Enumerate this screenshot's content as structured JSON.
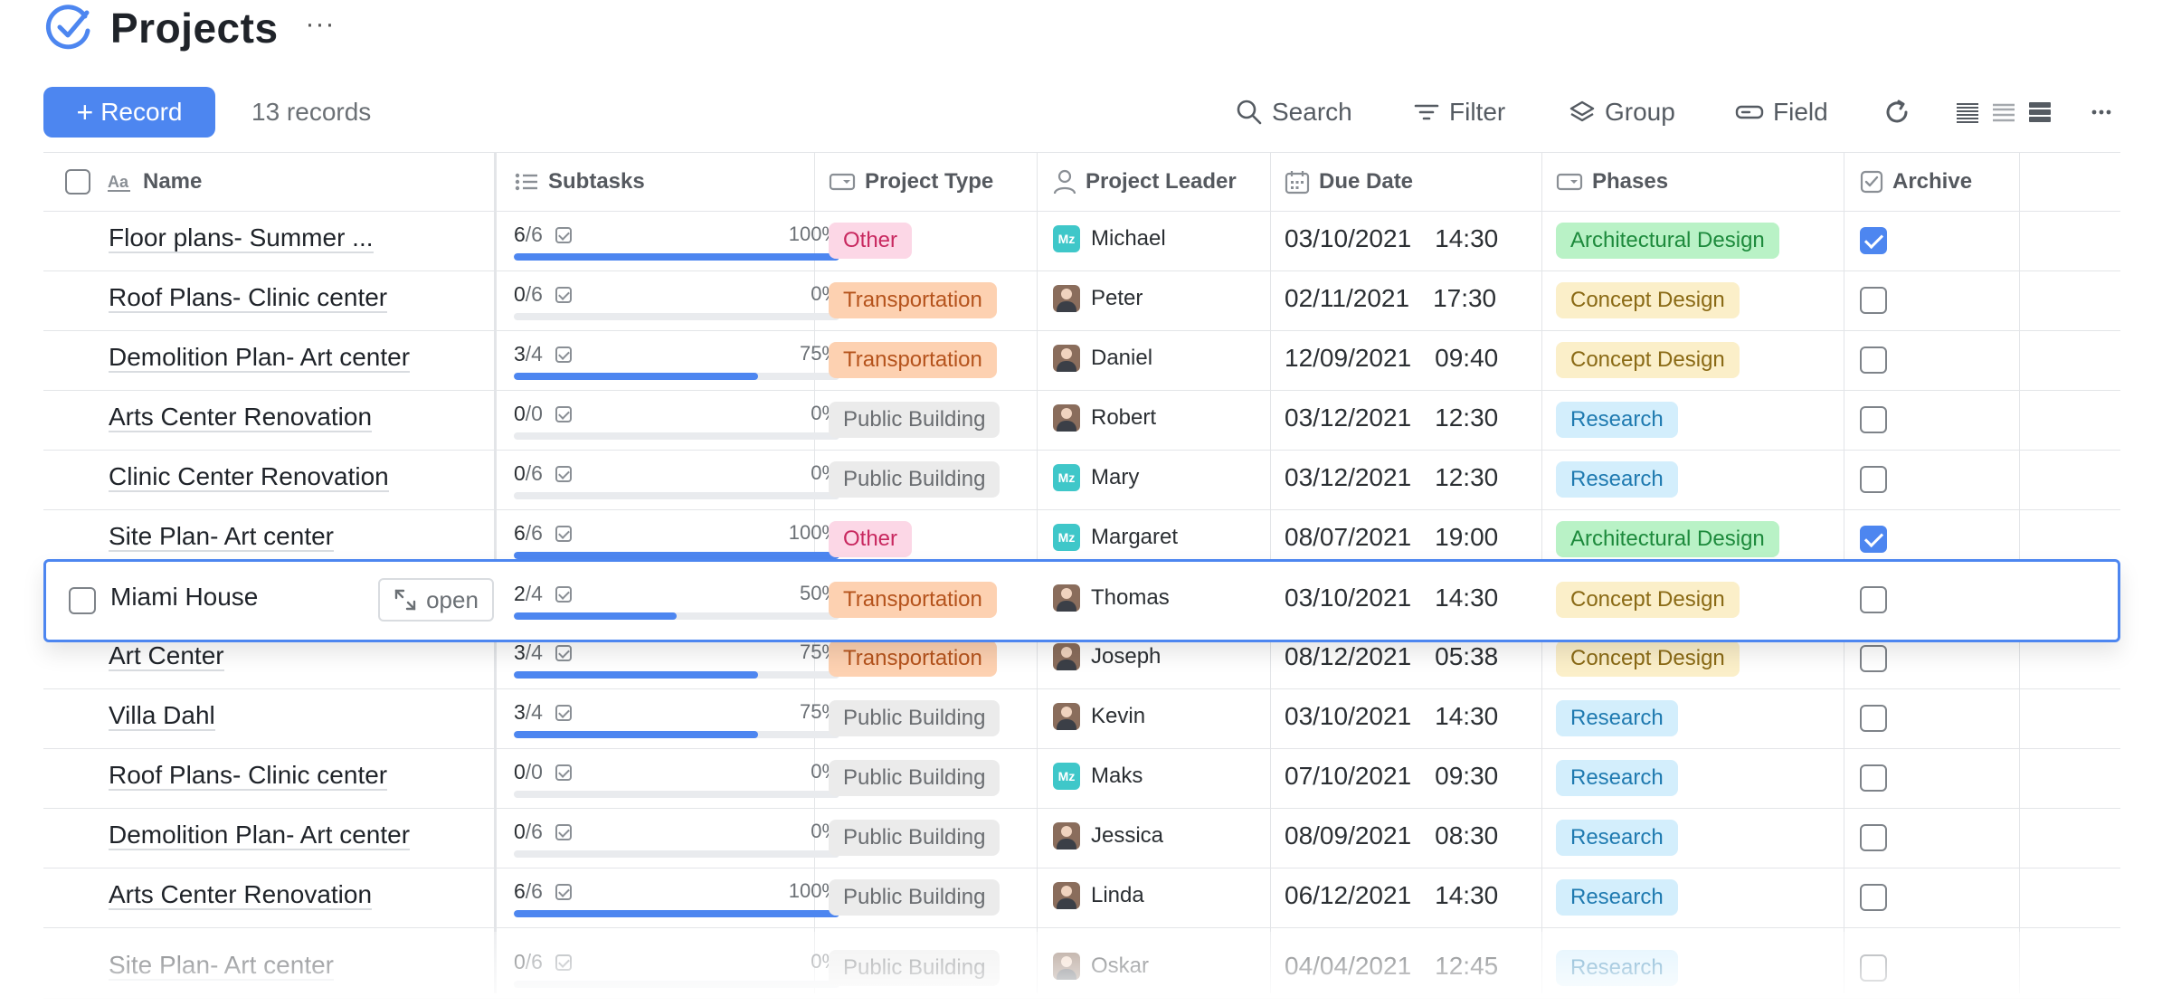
{
  "header": {
    "title": "Projects",
    "more": "···"
  },
  "toolbar": {
    "record_label": "Record",
    "record_count": "13 records",
    "search": "Search",
    "filter": "Filter",
    "group": "Group",
    "field": "Field"
  },
  "columns": {
    "name": "Name",
    "subtasks": "Subtasks",
    "project_type": "Project Type",
    "project_leader": "Project Leader",
    "due_date": "Due Date",
    "phases": "Phases",
    "archive": "Archive"
  },
  "open_label": "open",
  "colors": {
    "accent": "#4d86f0"
  },
  "rows": [
    {
      "name": "Floor  plans- Summer ...",
      "done": "6",
      "total": "/6",
      "percent": "100%",
      "progress": 1.0,
      "type": "Other",
      "leader": "Michael",
      "avatar": "Mz",
      "date": "03/10/2021",
      "time": "14:30",
      "phase": "Architectural Design",
      "archived": true
    },
    {
      "name": "Roof Plans- Clinic center",
      "done": "0",
      "total": "/6",
      "percent": "0%",
      "progress": 0.0,
      "type": "Transportation",
      "leader": "Peter",
      "avatar": "photo",
      "date": "02/11/2021",
      "time": "17:30",
      "phase": "Concept Design",
      "archived": false
    },
    {
      "name": "Demolition Plan- Art center",
      "done": "3",
      "total": "/4",
      "percent": "75%",
      "progress": 0.75,
      "type": "Transportation",
      "leader": "Daniel",
      "avatar": "photo",
      "date": "12/09/2021",
      "time": "09:40",
      "phase": "Concept Design",
      "archived": false
    },
    {
      "name": "Arts Center Renovation",
      "done": "0",
      "total": "/0",
      "percent": "0%",
      "progress": 0.0,
      "type": "Public Building",
      "leader": "Robert",
      "avatar": "photo",
      "date": "03/12/2021",
      "time": "12:30",
      "phase": "Research",
      "archived": false
    },
    {
      "name": "Clinic Center Renovation",
      "done": "0",
      "total": "/6",
      "percent": "0%",
      "progress": 0.0,
      "type": "Public Building",
      "leader": "Mary",
      "avatar": "Mz",
      "date": "03/12/2021",
      "time": "12:30",
      "phase": "Research",
      "archived": false
    },
    {
      "name": "Site Plan- Art center",
      "done": "6",
      "total": "/6",
      "percent": "100%",
      "progress": 1.0,
      "type": "Other",
      "leader": "Margaret",
      "avatar": "Mz",
      "date": "08/07/2021",
      "time": "19:00",
      "phase": "Architectural Design",
      "archived": true
    },
    {
      "name": "Miami House",
      "done": "2",
      "total": "/4",
      "percent": "50%",
      "progress": 0.5,
      "type": "Transportation",
      "leader": "Thomas",
      "avatar": "photo",
      "date": "03/10/2021",
      "time": "14:30",
      "phase": "Concept Design",
      "archived": false,
      "selected": true
    },
    {
      "name": "Art Center",
      "done": "3",
      "total": "/4",
      "percent": "75%",
      "progress": 0.75,
      "type": "Transportation",
      "leader": "Joseph",
      "avatar": "photo",
      "date": "08/12/2021",
      "time": "05:38",
      "phase": "Concept Design",
      "archived": false
    },
    {
      "name": "Villa Dahl",
      "done": "3",
      "total": "/4",
      "percent": "75%",
      "progress": 0.75,
      "type": "Public Building",
      "leader": "Kevin",
      "avatar": "photo",
      "date": "03/10/2021",
      "time": "14:30",
      "phase": "Research",
      "archived": false
    },
    {
      "name": "Roof Plans- Clinic center",
      "done": "0",
      "total": "/0",
      "percent": "0%",
      "progress": 0.0,
      "type": "Public Building",
      "leader": "Maks",
      "avatar": "Mz",
      "date": "07/10/2021",
      "time": "09:30",
      "phase": "Research",
      "archived": false
    },
    {
      "name": "Demolition Plan- Art center",
      "done": "0",
      "total": "/6",
      "percent": "0%",
      "progress": 0.0,
      "type": "Public Building",
      "leader": "Jessica",
      "avatar": "photo",
      "date": "08/09/2021",
      "time": "08:30",
      "phase": "Research",
      "archived": false
    },
    {
      "name": "Arts Center Renovation",
      "done": "6",
      "total": "/6",
      "percent": "100%",
      "progress": 1.0,
      "type": "Public Building",
      "leader": "Linda",
      "avatar": "photo",
      "date": "06/12/2021",
      "time": "14:30",
      "phase": "Research",
      "archived": false
    },
    {
      "name": "Site Plan- Art center",
      "done": "0",
      "total": "/6",
      "percent": "0%",
      "progress": 0.0,
      "type": "Public Building",
      "leader": "Oskar",
      "avatar": "photo",
      "date": "04/04/2021",
      "time": "12:45",
      "phase": "Research",
      "archived": false
    }
  ]
}
